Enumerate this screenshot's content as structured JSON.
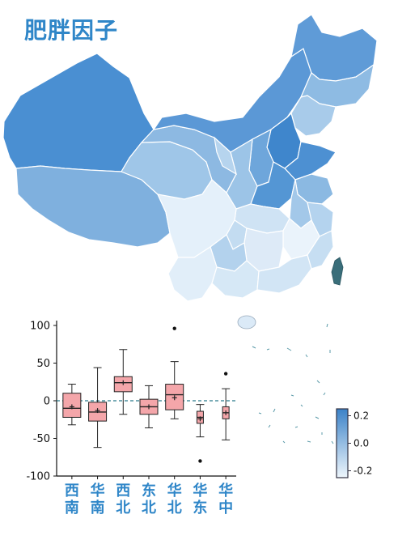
{
  "title": "肥胖因子",
  "colors": {
    "title": "#2f86c8",
    "box_fill": "#f4a6aa",
    "box_stroke": "#222222",
    "zero_line": "#2b7a8c",
    "category_label": "#2f86c8",
    "map_high": "#3b82c8",
    "map_low": "#eef6fc",
    "taiwan": "#3a6e7a"
  },
  "colorbar": {
    "labels": [
      "0.2",
      "0.0",
      "-0.2"
    ],
    "range": [
      -0.25,
      0.25
    ],
    "position": "bottom-right"
  },
  "map": {
    "icon": "china-choropleth-map",
    "regions": [
      {
        "name": "Xinjiang",
        "value": 0.18
      },
      {
        "name": "Tibet",
        "value": 0.08
      },
      {
        "name": "Qinghai",
        "value": 0.03
      },
      {
        "name": "Gansu",
        "value": 0.05
      },
      {
        "name": "Inner Mongolia",
        "value": 0.15
      },
      {
        "name": "Heilongjiang",
        "value": 0.16
      },
      {
        "name": "Jilin",
        "value": 0.05
      },
      {
        "name": "Liaoning",
        "value": 0.02
      },
      {
        "name": "Hebei",
        "value": 0.19
      },
      {
        "name": "Shandong",
        "value": 0.14
      },
      {
        "name": "Henan",
        "value": 0.13
      },
      {
        "name": "Sichuan",
        "value": -0.13
      },
      {
        "name": "Yunnan",
        "value": -0.11
      },
      {
        "name": "Guangdong",
        "value": -0.08
      },
      {
        "name": "Hunan",
        "value": -0.1
      }
    ]
  },
  "chart_data": {
    "type": "box",
    "categories": [
      "西南",
      "华南",
      "西北",
      "东北",
      "华北",
      "华东",
      "华中"
    ],
    "ylim": [
      -100,
      100
    ],
    "yticks": [
      100,
      50,
      0,
      -50,
      -100
    ],
    "reference_line": 0,
    "boxes": [
      {
        "category": "西南",
        "whislo": -32,
        "q1": -22,
        "med": -10,
        "q3": 10,
        "whishi": 22,
        "mean": -8,
        "fliers": []
      },
      {
        "category": "华南",
        "whislo": -62,
        "q1": -27,
        "med": -15,
        "q3": -2,
        "whishi": 44,
        "mean": -13,
        "fliers": []
      },
      {
        "category": "西北",
        "whislo": -18,
        "q1": 12,
        "med": 24,
        "q3": 32,
        "whishi": 68,
        "mean": 24,
        "fliers": []
      },
      {
        "category": "东北",
        "whislo": -36,
        "q1": -18,
        "med": -8,
        "q3": 2,
        "whishi": 20,
        "mean": -8,
        "fliers": []
      },
      {
        "category": "华北",
        "whislo": -24,
        "q1": -12,
        "med": 8,
        "q3": 22,
        "whishi": 52,
        "mean": 4,
        "fliers": [
          96
        ]
      },
      {
        "category": "华东",
        "whislo": -48,
        "q1": -30,
        "med": -22,
        "q3": -14,
        "whishi": -5,
        "mean": -24,
        "fliers": [
          -80
        ]
      },
      {
        "category": "华中",
        "whislo": -52,
        "q1": -24,
        "med": -16,
        "q3": -8,
        "whishi": 16,
        "mean": -16,
        "fliers": [
          36
        ]
      }
    ]
  }
}
